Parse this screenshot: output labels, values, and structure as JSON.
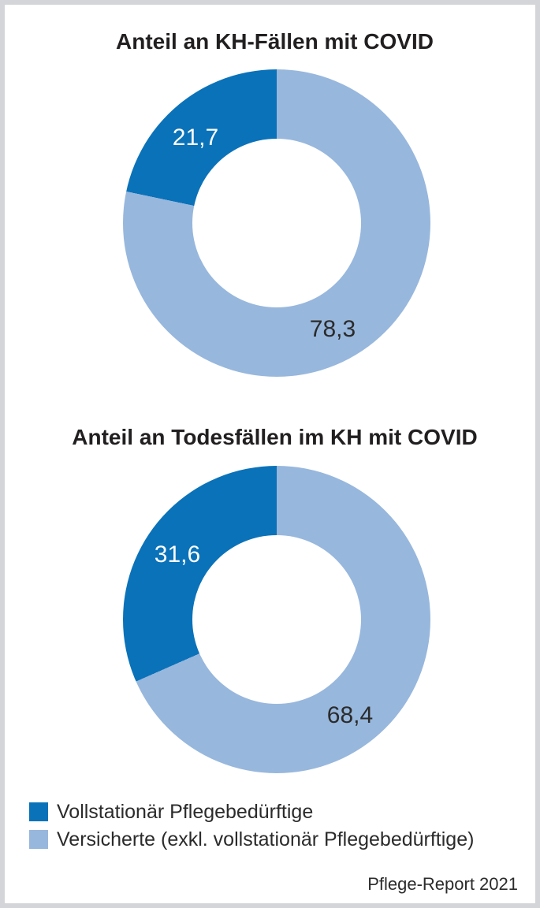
{
  "figure": {
    "background": "#ffffff",
    "border_color": "#d3d5d8"
  },
  "colors": {
    "dark_blue": "#0a72b9",
    "light_blue": "#97b7dd",
    "title_text": "#221f20",
    "body_text": "#2b2b2b"
  },
  "chart_data": [
    {
      "type": "pie",
      "subtype": "donut",
      "title": "Anteil an KH-Fällen mit COVID",
      "unit": "percent",
      "start_angle_deg": 0,
      "direction": "clockwise",
      "series": [
        {
          "name": "Vollstationär Pflegebedürftige",
          "value": 21.7,
          "label": "21,7",
          "color": "#0a72b9",
          "label_color": "#ffffff"
        },
        {
          "name": "Versicherte (exkl. vollstationär Pflegebedürftige)",
          "value": 78.3,
          "label": "78,3",
          "color": "#97b7dd",
          "label_color": "#2b2b2b"
        }
      ]
    },
    {
      "type": "pie",
      "subtype": "donut",
      "title": "Anteil an Todesfällen im KH mit COVID",
      "unit": "percent",
      "start_angle_deg": 0,
      "direction": "clockwise",
      "series": [
        {
          "name": "Vollstationär Pflegebedürftige",
          "value": 31.6,
          "label": "31,6",
          "color": "#0a72b9",
          "label_color": "#ffffff"
        },
        {
          "name": "Versicherte (exkl. vollstationär Pflegebedürftige)",
          "value": 68.4,
          "label": "68,4",
          "color": "#97b7dd",
          "label_color": "#2b2b2b"
        }
      ]
    }
  ],
  "legend": {
    "items": [
      {
        "label": "Vollstationär Pflegebedürftige",
        "color": "#0a72b9"
      },
      {
        "label": "Versicherte (exkl. vollstationär Pflegebedürftige)",
        "color": "#97b7dd"
      }
    ]
  },
  "footer": {
    "text": "Pflege-Report 2021"
  }
}
